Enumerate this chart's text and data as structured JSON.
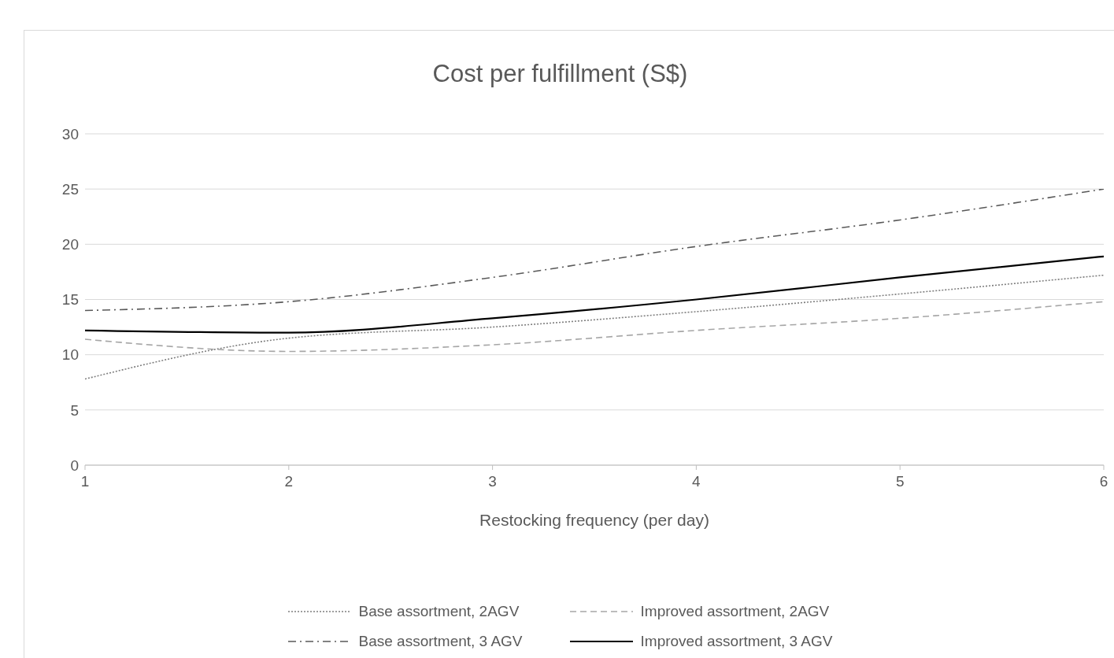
{
  "chart_data": {
    "type": "line",
    "title": "Cost per fulfillment (S$)",
    "xlabel": "Restocking frequency (per day)",
    "x": [
      1,
      2,
      3,
      4,
      5,
      6
    ],
    "series": [
      {
        "name": "Base assortment, 2AGV",
        "color": "#7f7f7f",
        "line_style": "dotted",
        "values": [
          7.8,
          11.5,
          12.5,
          13.9,
          15.5,
          17.2
        ]
      },
      {
        "name": "Improved assortment, 2AGV",
        "color": "#a6a6a6",
        "line_style": "dashed",
        "values": [
          11.4,
          10.3,
          10.9,
          12.2,
          13.3,
          14.8
        ]
      },
      {
        "name": "Base assortment, 3 AGV",
        "color": "#595959",
        "line_style": "dashdot",
        "values": [
          14.0,
          14.8,
          17.0,
          19.8,
          22.2,
          25.0
        ]
      },
      {
        "name": "Improved assortment, 3 AGV",
        "color": "#000000",
        "line_style": "solid",
        "values": [
          12.2,
          12.0,
          13.3,
          15.0,
          17.0,
          18.9
        ]
      }
    ],
    "xlim": [
      1,
      6
    ],
    "xticks": [
      1,
      2,
      3,
      4,
      5,
      6
    ],
    "ylim": [
      0,
      30
    ],
    "yticks": [
      0,
      5,
      10,
      15,
      20,
      25,
      30
    ],
    "grid": "y",
    "legend": "bottom",
    "marker": "none"
  }
}
